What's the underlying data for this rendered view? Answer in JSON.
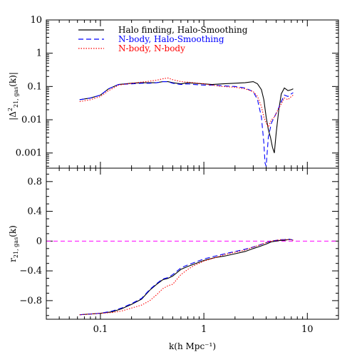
{
  "chart_data": [
    {
      "type": "line",
      "panel": "top",
      "ylabel": "|Δ²21, gas(k)|",
      "ylabel_main": "|Δ",
      "ylabel_sup": "2",
      "ylabel_sub": "21, gas",
      "ylabel_tail": "(k)|",
      "xscale": "log",
      "yscale": "log",
      "xlim": [
        0.03,
        20
      ],
      "ylim": [
        0.00035,
        10
      ],
      "yticks": [
        0.001,
        0.01,
        0.1,
        1,
        10
      ],
      "ytick_labels": [
        "0.001",
        "0.01",
        "0.1",
        "1",
        "10"
      ],
      "legend": {
        "placement": "top-left",
        "entries": [
          {
            "label": "Halo finding, Halo-Smoothing",
            "color": "#000000",
            "style": "solid"
          },
          {
            "label": "N-body, Halo-Smoothing",
            "color": "#0000ff",
            "style": "dashed"
          },
          {
            "label": "N-body, N-body",
            "color": "#ff0000",
            "style": "dotted"
          }
        ]
      },
      "series": [
        {
          "name": "Halo finding, Halo-Smoothing",
          "color": "#000000",
          "style": "solid",
          "x": [
            0.063,
            0.08,
            0.1,
            0.12,
            0.15,
            0.2,
            0.25,
            0.3,
            0.35,
            0.4,
            0.45,
            0.5,
            0.6,
            0.7,
            0.8,
            1.0,
            1.2,
            1.5,
            2.0,
            2.5,
            3.0,
            3.3,
            3.6,
            3.8,
            4.0,
            4.2,
            4.4,
            4.6,
            4.8,
            5.0,
            5.3,
            5.6,
            6.0,
            6.5,
            7.0,
            7.3
          ],
          "y": [
            0.04,
            0.045,
            0.055,
            0.085,
            0.115,
            0.125,
            0.13,
            0.13,
            0.13,
            0.14,
            0.14,
            0.13,
            0.12,
            0.13,
            0.125,
            0.12,
            0.115,
            0.12,
            0.125,
            0.13,
            0.14,
            0.12,
            0.08,
            0.04,
            0.012,
            0.005,
            0.003,
            0.0015,
            0.001,
            0.004,
            0.02,
            0.06,
            0.09,
            0.075,
            0.08,
            0.085
          ]
        },
        {
          "name": "N-body, Halo-Smoothing",
          "color": "#0000ff",
          "style": "dashed",
          "x": [
            0.063,
            0.08,
            0.1,
            0.12,
            0.15,
            0.2,
            0.25,
            0.3,
            0.35,
            0.4,
            0.45,
            0.5,
            0.6,
            0.7,
            0.8,
            1.0,
            1.2,
            1.5,
            2.0,
            2.5,
            3.0,
            3.3,
            3.6,
            3.8,
            3.9,
            4.0,
            4.2,
            4.5,
            4.8,
            5.2,
            5.6,
            6.0,
            6.5,
            7.0,
            7.3
          ],
          "y": [
            0.04,
            0.045,
            0.055,
            0.085,
            0.115,
            0.12,
            0.125,
            0.125,
            0.13,
            0.14,
            0.14,
            0.125,
            0.115,
            0.12,
            0.115,
            0.11,
            0.11,
            0.105,
            0.1,
            0.09,
            0.07,
            0.04,
            0.012,
            0.002,
            0.0005,
            0.0004,
            0.003,
            0.008,
            0.012,
            0.02,
            0.035,
            0.055,
            0.05,
            0.06,
            0.065
          ]
        },
        {
          "name": "N-body, N-body",
          "color": "#ff0000",
          "style": "dotted",
          "x": [
            0.063,
            0.08,
            0.1,
            0.12,
            0.15,
            0.2,
            0.25,
            0.3,
            0.35,
            0.4,
            0.45,
            0.5,
            0.6,
            0.7,
            0.8,
            1.0,
            1.2,
            1.5,
            2.0,
            2.5,
            3.0,
            3.3,
            3.6,
            3.8,
            4.0,
            4.2,
            4.5,
            4.8,
            5.2,
            5.6,
            6.0,
            6.5,
            7.0,
            7.3
          ],
          "y": [
            0.035,
            0.04,
            0.05,
            0.075,
            0.11,
            0.125,
            0.135,
            0.145,
            0.155,
            0.17,
            0.18,
            0.16,
            0.14,
            0.135,
            0.13,
            0.12,
            0.11,
            0.1,
            0.095,
            0.085,
            0.07,
            0.05,
            0.025,
            0.012,
            0.008,
            0.006,
            0.01,
            0.012,
            0.02,
            0.03,
            0.045,
            0.04,
            0.05,
            0.055
          ]
        }
      ]
    },
    {
      "type": "line",
      "panel": "bottom",
      "ylabel": "r21, gas(k)",
      "ylabel_main": "r",
      "ylabel_sub": "21, gas",
      "ylabel_tail": "(k)",
      "xlabel": "k(h Mpc⁻¹)",
      "xscale": "log",
      "xlim": [
        0.03,
        20
      ],
      "ylim": [
        -1.05,
        0.98
      ],
      "yticks": [
        -0.8,
        -0.4,
        0,
        0.4,
        0.8
      ],
      "ytick_labels": [
        "−0.8",
        "−0.4",
        "0",
        "0.4",
        "0.8"
      ],
      "xticks": [
        0.1,
        1,
        10
      ],
      "xtick_labels": [
        "0.1",
        "1",
        "10"
      ],
      "reference_line": {
        "y": 0,
        "color": "#ff00ff",
        "style": "dashed"
      },
      "series": [
        {
          "name": "Halo finding, Halo-Smoothing",
          "color": "#000000",
          "style": "solid",
          "x": [
            0.063,
            0.08,
            0.1,
            0.13,
            0.16,
            0.2,
            0.25,
            0.3,
            0.35,
            0.4,
            0.45,
            0.5,
            0.6,
            0.7,
            0.8,
            1.0,
            1.3,
            1.6,
            2.0,
            2.5,
            3.0,
            3.5,
            4.0,
            4.5,
            5.0,
            5.5,
            6.0,
            6.5,
            7.0,
            7.3
          ],
          "y": [
            -0.99,
            -0.98,
            -0.97,
            -0.95,
            -0.91,
            -0.85,
            -0.78,
            -0.66,
            -0.58,
            -0.52,
            -0.5,
            -0.47,
            -0.38,
            -0.34,
            -0.31,
            -0.26,
            -0.22,
            -0.2,
            -0.17,
            -0.14,
            -0.1,
            -0.07,
            -0.04,
            -0.01,
            0.0,
            0.01,
            0.01,
            0.02,
            0.02,
            0.01
          ]
        },
        {
          "name": "N-body, Halo-Smoothing",
          "color": "#0000ff",
          "style": "dashed",
          "x": [
            0.063,
            0.08,
            0.1,
            0.13,
            0.16,
            0.2,
            0.25,
            0.3,
            0.35,
            0.4,
            0.45,
            0.5,
            0.6,
            0.7,
            0.8,
            1.0,
            1.3,
            1.6,
            2.0,
            2.5,
            3.0,
            3.5,
            4.0,
            4.5,
            5.0,
            5.5,
            6.0,
            6.5,
            7.0,
            7.3
          ],
          "y": [
            -0.99,
            -0.98,
            -0.97,
            -0.94,
            -0.9,
            -0.84,
            -0.77,
            -0.65,
            -0.57,
            -0.51,
            -0.49,
            -0.45,
            -0.36,
            -0.32,
            -0.29,
            -0.24,
            -0.2,
            -0.17,
            -0.14,
            -0.11,
            -0.08,
            -0.05,
            -0.02,
            0.0,
            0.01,
            0.02,
            0.02,
            0.03,
            0.02,
            0.01
          ]
        },
        {
          "name": "N-body, N-body",
          "color": "#ff0000",
          "style": "dotted",
          "x": [
            0.063,
            0.08,
            0.1,
            0.13,
            0.16,
            0.2,
            0.25,
            0.3,
            0.35,
            0.4,
            0.45,
            0.5,
            0.6,
            0.7,
            0.8,
            1.0,
            1.3,
            1.6,
            2.0,
            2.5,
            3.0,
            3.5,
            4.0,
            4.5,
            5.0,
            5.5,
            6.0,
            6.5,
            7.0,
            7.3
          ],
          "y": [
            -0.99,
            -0.98,
            -0.97,
            -0.96,
            -0.94,
            -0.9,
            -0.86,
            -0.8,
            -0.72,
            -0.64,
            -0.6,
            -0.58,
            -0.45,
            -0.38,
            -0.33,
            -0.27,
            -0.22,
            -0.18,
            -0.15,
            -0.12,
            -0.08,
            -0.05,
            -0.02,
            0.0,
            0.01,
            0.02,
            0.02,
            0.02,
            0.02,
            0.01
          ]
        }
      ]
    }
  ]
}
